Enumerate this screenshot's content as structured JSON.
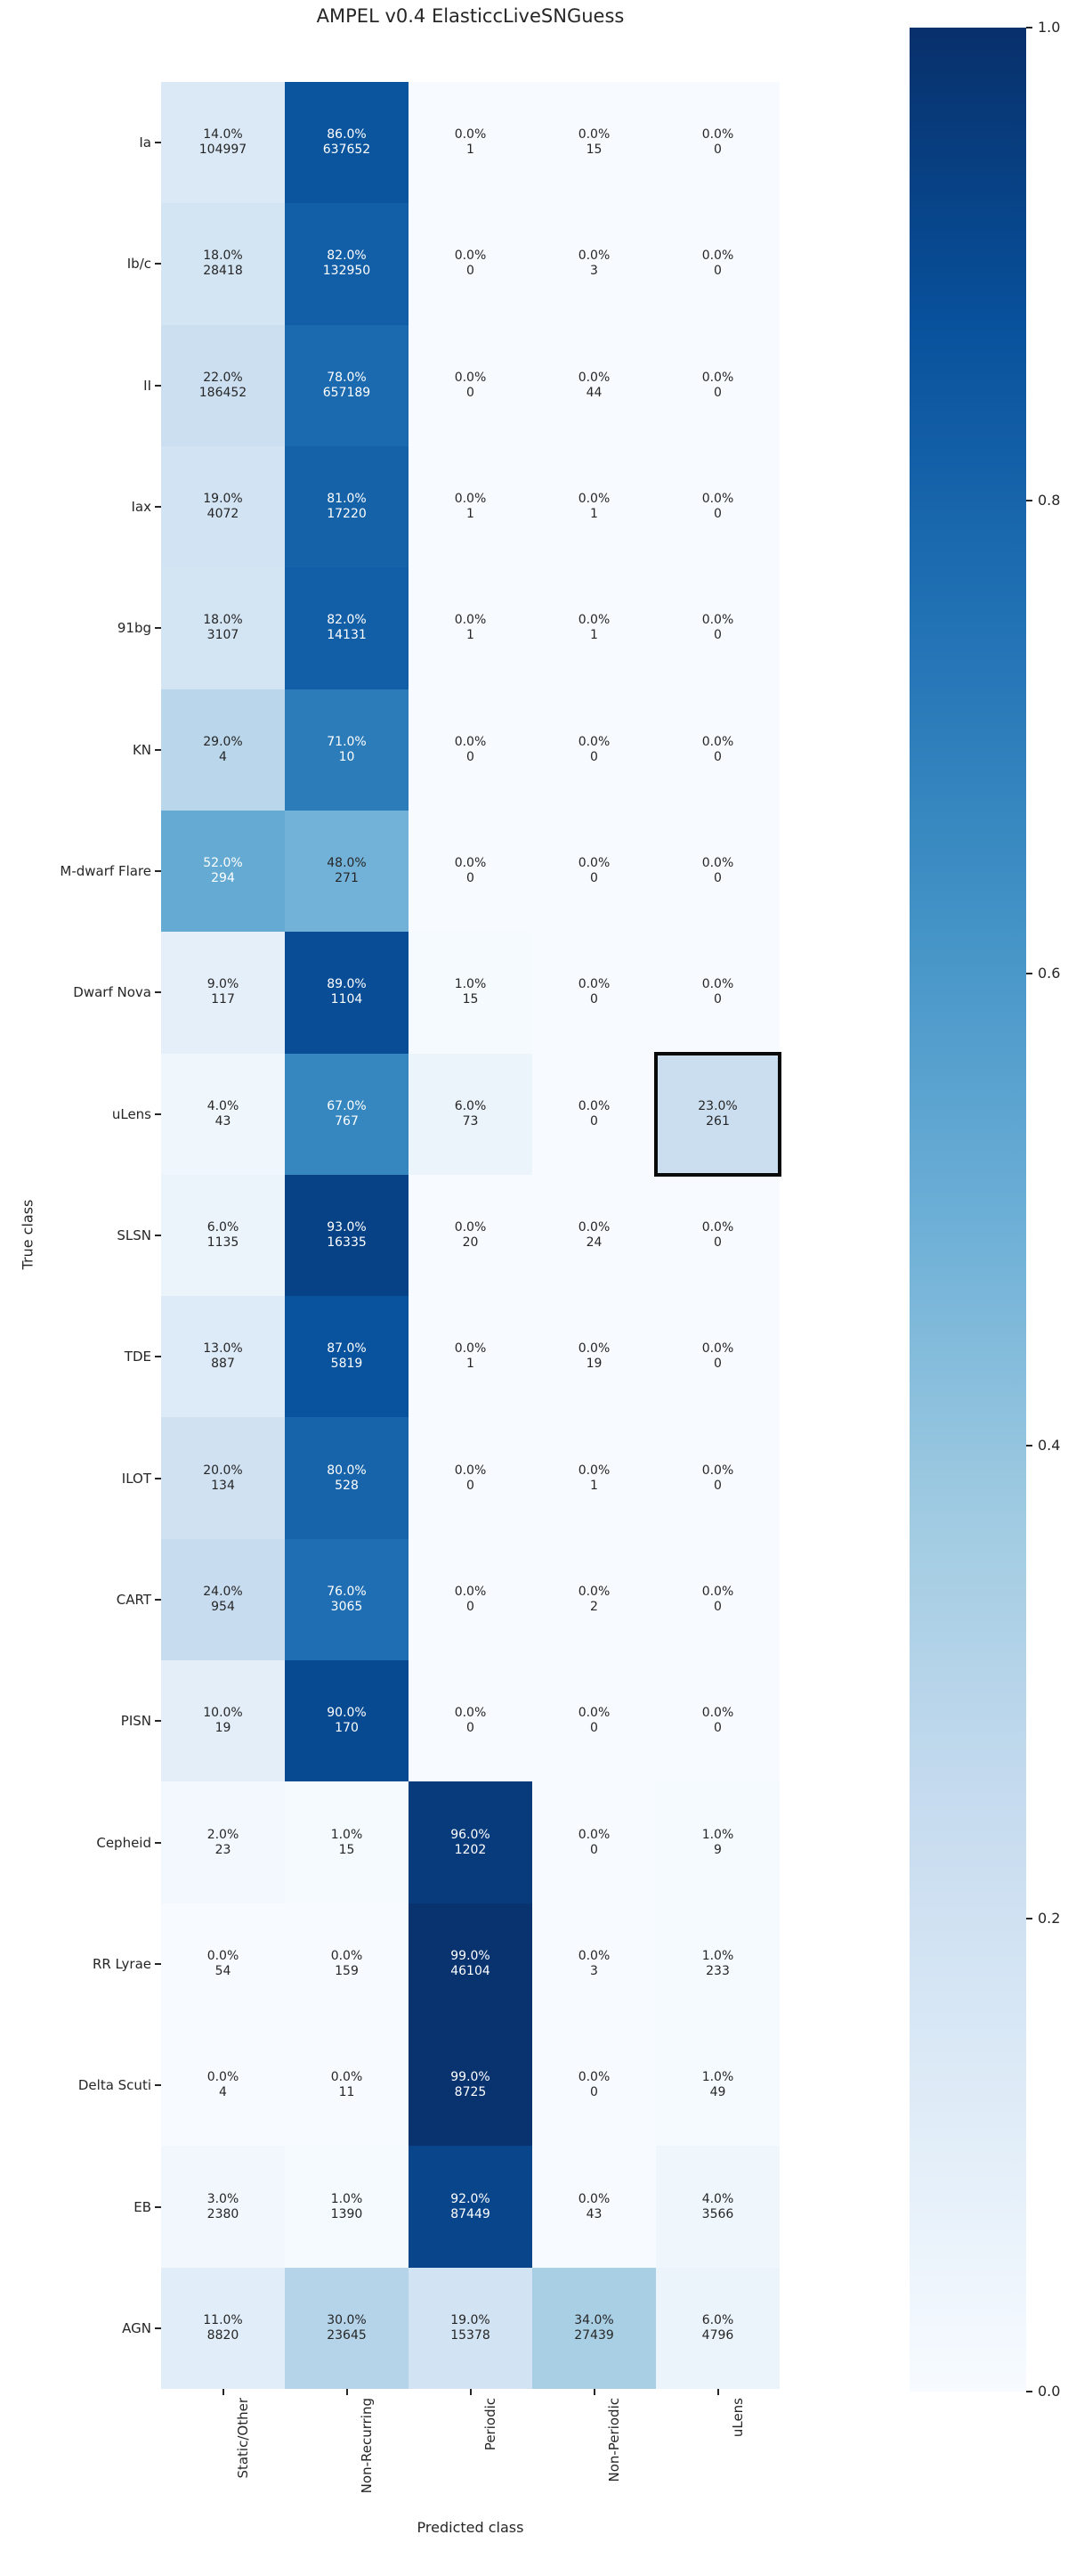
{
  "title": "AMPEL v0.4 ElasticcLiveSNGuess",
  "chart_data": {
    "type": "heatmap",
    "title": "AMPEL v0.4 ElasticcLiveSNGuess",
    "xlabel": "Predicted class",
    "ylabel": "True class",
    "x_categories": [
      "Static/Other",
      "Non-Recurring",
      "Periodic",
      "Non-Periodic",
      "uLens"
    ],
    "y_categories": [
      "Ia",
      "Ib/c",
      "II",
      "Iax",
      "91bg",
      "KN",
      "M-dwarf Flare",
      "Dwarf Nova",
      "uLens",
      "SLSN",
      "TDE",
      "ILOT",
      "CART",
      "PISN",
      "Cepheid",
      "RR Lyrae",
      "Delta Scuti",
      "EB",
      "AGN"
    ],
    "cell_percent": [
      [
        14.0,
        86.0,
        0.0,
        0.0,
        0.0
      ],
      [
        18.0,
        82.0,
        0.0,
        0.0,
        0.0
      ],
      [
        22.0,
        78.0,
        0.0,
        0.0,
        0.0
      ],
      [
        19.0,
        81.0,
        0.0,
        0.0,
        0.0
      ],
      [
        18.0,
        82.0,
        0.0,
        0.0,
        0.0
      ],
      [
        29.0,
        71.0,
        0.0,
        0.0,
        0.0
      ],
      [
        52.0,
        48.0,
        0.0,
        0.0,
        0.0
      ],
      [
        9.0,
        89.0,
        1.0,
        0.0,
        0.0
      ],
      [
        4.0,
        67.0,
        6.0,
        0.0,
        23.0
      ],
      [
        6.0,
        93.0,
        0.0,
        0.0,
        0.0
      ],
      [
        13.0,
        87.0,
        0.0,
        0.0,
        0.0
      ],
      [
        20.0,
        80.0,
        0.0,
        0.0,
        0.0
      ],
      [
        24.0,
        76.0,
        0.0,
        0.0,
        0.0
      ],
      [
        10.0,
        90.0,
        0.0,
        0.0,
        0.0
      ],
      [
        2.0,
        1.0,
        96.0,
        0.0,
        1.0
      ],
      [
        0.0,
        0.0,
        99.0,
        0.0,
        1.0
      ],
      [
        0.0,
        0.0,
        99.0,
        0.0,
        1.0
      ],
      [
        3.0,
        1.0,
        92.0,
        0.0,
        4.0
      ],
      [
        11.0,
        30.0,
        19.0,
        34.0,
        6.0
      ]
    ],
    "cell_counts": [
      [
        104997,
        637652,
        1,
        15,
        0
      ],
      [
        28418,
        132950,
        0,
        3,
        0
      ],
      [
        186452,
        657189,
        0,
        44,
        0
      ],
      [
        4072,
        17220,
        1,
        1,
        0
      ],
      [
        3107,
        14131,
        1,
        1,
        0
      ],
      [
        4,
        10,
        0,
        0,
        0
      ],
      [
        294,
        271,
        0,
        0,
        0
      ],
      [
        117,
        1104,
        15,
        0,
        0
      ],
      [
        43,
        767,
        73,
        0,
        261
      ],
      [
        1135,
        16335,
        20,
        24,
        0
      ],
      [
        887,
        5819,
        1,
        19,
        0
      ],
      [
        134,
        528,
        0,
        1,
        0
      ],
      [
        954,
        3065,
        0,
        2,
        0
      ],
      [
        19,
        170,
        0,
        0,
        0
      ],
      [
        23,
        15,
        1202,
        0,
        9
      ],
      [
        54,
        159,
        46104,
        3,
        233
      ],
      [
        4,
        11,
        8725,
        0,
        49
      ],
      [
        2380,
        1390,
        87449,
        43,
        3566
      ],
      [
        8820,
        23645,
        15378,
        27439,
        4796
      ]
    ],
    "vmin": 0.0,
    "vmax": 1.0,
    "colormap": "Blues",
    "colormap_stops": [
      "#f7fbff",
      "#deebf7",
      "#c6dbef",
      "#9ecae1",
      "#6baed6",
      "#4292c6",
      "#2171b5",
      "#08519c",
      "#08306b"
    ],
    "colorbar_ticks": [
      "1.0",
      "0.8",
      "0.6",
      "0.4",
      "0.2",
      "0.0"
    ],
    "highlight_cell": {
      "row": "uLens",
      "col": "uLens",
      "row_index": 8,
      "col_index": 4
    },
    "annotation_format": "percent_and_count",
    "text_colors": {
      "dark": "#262626",
      "light": "#ffffff"
    }
  }
}
